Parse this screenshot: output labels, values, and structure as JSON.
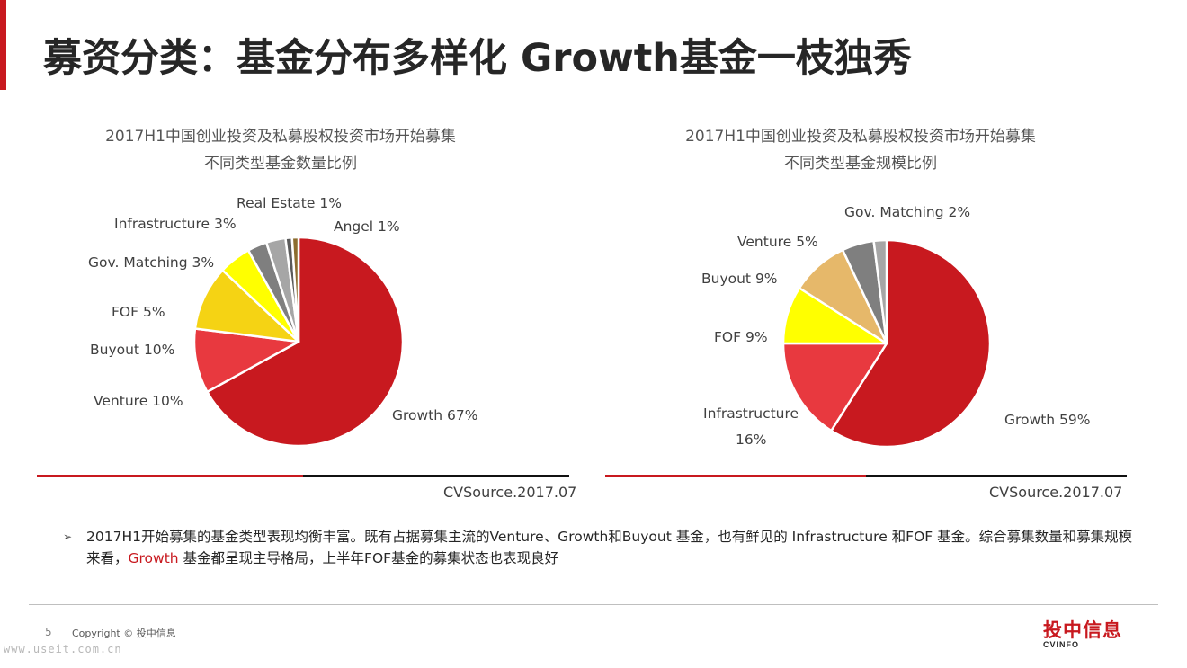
{
  "title": "募资分类：基金分布多样化 Growth基金一枝独秀",
  "colors": {
    "accent": "#c8191f",
    "growth": "#c8191f",
    "venture": "#e8393f",
    "buyout": "#f5d314",
    "fof": "#ffff00",
    "fof_alt": "#e6b86a",
    "gov_matching": "#7f7f7f",
    "infrastructure": "#a6a6a6",
    "real_estate": "#5a5a5a",
    "angel": "#8c6d2f"
  },
  "chart_data": [
    {
      "type": "pie",
      "title_line1": "2017H1中国创业投资及私募股权投资市场开始募集",
      "title_line2": "不同类型基金数量比例",
      "slices": [
        {
          "name": "Growth",
          "value": 67,
          "label": "Growth 67%",
          "color": "#c8191f"
        },
        {
          "name": "Venture",
          "value": 10,
          "label": "Venture 10%",
          "color": "#e8393f"
        },
        {
          "name": "Buyout",
          "value": 10,
          "label": "Buyout 10%",
          "color": "#f5d314"
        },
        {
          "name": "FOF",
          "value": 5,
          "label": "FOF 5%",
          "color": "#ffff00"
        },
        {
          "name": "Gov. Matching",
          "value": 3,
          "label": "Gov. Matching 3%",
          "color": "#7f7f7f"
        },
        {
          "name": "Infrastructure",
          "value": 3,
          "label": "Infrastructure 3%",
          "color": "#a6a6a6"
        },
        {
          "name": "Real Estate",
          "value": 1,
          "label": "Real Estate 1%",
          "color": "#5a5a5a"
        },
        {
          "name": "Angel",
          "value": 1,
          "label": "Angel 1%",
          "color": "#8c6d2f"
        }
      ],
      "source": "CVSource.2017.07"
    },
    {
      "type": "pie",
      "title_line1": "2017H1中国创业投资及私募股权投资市场开始募集",
      "title_line2": "不同类型基金规模比例",
      "slices": [
        {
          "name": "Growth",
          "value": 59,
          "label": "Growth 59%",
          "color": "#c8191f"
        },
        {
          "name": "Infrastructure",
          "value": 16,
          "label": "Infrastructure 16%",
          "label_line1": "Infrastructure",
          "label_line2": "16%",
          "color": "#e8393f"
        },
        {
          "name": "FOF",
          "value": 9,
          "label": "FOF 9%",
          "color": "#ffff00"
        },
        {
          "name": "Buyout",
          "value": 9,
          "label": "Buyout 9%",
          "color": "#e6b86a"
        },
        {
          "name": "Venture",
          "value": 5,
          "label": "Venture 5%",
          "color": "#7f7f7f"
        },
        {
          "name": "Gov. Matching",
          "value": 2,
          "label": "Gov. Matching 2%",
          "color": "#a6a6a6"
        }
      ],
      "source": "CVSource.2017.07"
    }
  ],
  "summary": {
    "bullet": "➢",
    "part1": "2017H1开始募集的基金类型表现均衡丰富。既有占据募集主流的Venture、Growth和Buyout 基金，也有鲜见的 Infrastructure 和FOF 基金。综合募集数量和募集规模来看，",
    "highlight": "Growth",
    "part2": " 基金都呈现主导格局，上半年FOF基金的募集状态也表现良好"
  },
  "footer": {
    "page_number": "5",
    "copyright": "Copyright © 投中信息",
    "watermark": "www.useit.com.cn",
    "logo_cn": "投中信息",
    "logo_en": "CVINFO"
  }
}
